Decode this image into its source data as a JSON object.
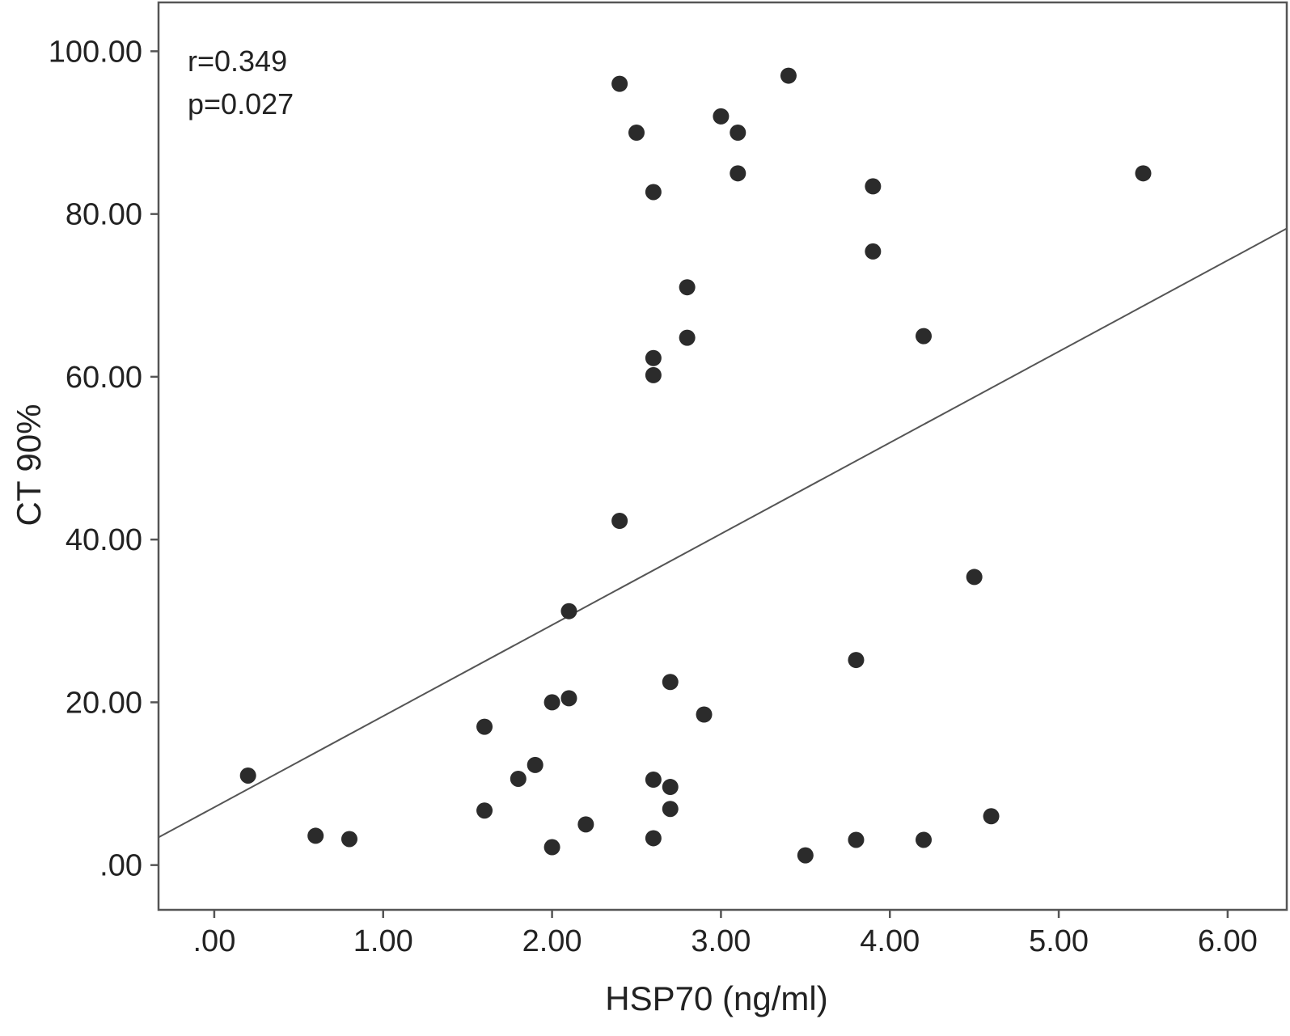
{
  "chart_data": {
    "type": "scatter",
    "title": "",
    "xlabel": "HSP70 (ng/ml)",
    "ylabel": "CT 90%",
    "xlim": [
      -0.33,
      6.35
    ],
    "ylim": [
      -5.5,
      106
    ],
    "xticks": [
      0,
      1,
      2,
      3,
      4,
      5,
      6
    ],
    "xtick_labels": [
      ".00",
      "1.00",
      "2.00",
      "3.00",
      "4.00",
      "5.00",
      "6.00"
    ],
    "yticks": [
      0,
      20,
      40,
      60,
      80,
      100
    ],
    "ytick_labels": [
      ".00",
      "20.00",
      "40.00",
      "60.00",
      "80.00",
      "100.00"
    ],
    "grid": false,
    "legend": "none",
    "annotations": [
      "r=0.349",
      "p=0.027"
    ],
    "fit_line": {
      "intercept": 7.1,
      "slope": 11.2
    },
    "point_color": "#2b2b2b",
    "line_color": "#555555",
    "points": [
      {
        "x": 0.2,
        "y": 11.0
      },
      {
        "x": 0.6,
        "y": 3.6
      },
      {
        "x": 0.8,
        "y": 3.2
      },
      {
        "x": 1.6,
        "y": 17.0
      },
      {
        "x": 1.6,
        "y": 6.7
      },
      {
        "x": 1.8,
        "y": 10.6
      },
      {
        "x": 1.9,
        "y": 12.3
      },
      {
        "x": 2.0,
        "y": 20.0
      },
      {
        "x": 2.0,
        "y": 2.2
      },
      {
        "x": 2.1,
        "y": 20.5
      },
      {
        "x": 2.1,
        "y": 31.2
      },
      {
        "x": 2.2,
        "y": 5.0
      },
      {
        "x": 2.4,
        "y": 96.0
      },
      {
        "x": 2.4,
        "y": 42.3
      },
      {
        "x": 2.5,
        "y": 90.0
      },
      {
        "x": 2.6,
        "y": 82.7
      },
      {
        "x": 2.6,
        "y": 62.3
      },
      {
        "x": 2.6,
        "y": 60.2
      },
      {
        "x": 2.6,
        "y": 10.5
      },
      {
        "x": 2.6,
        "y": 3.3
      },
      {
        "x": 2.7,
        "y": 22.5
      },
      {
        "x": 2.7,
        "y": 9.6
      },
      {
        "x": 2.7,
        "y": 6.9
      },
      {
        "x": 2.8,
        "y": 71.0
      },
      {
        "x": 2.8,
        "y": 64.8
      },
      {
        "x": 2.9,
        "y": 18.5
      },
      {
        "x": 3.0,
        "y": 92.0
      },
      {
        "x": 3.1,
        "y": 90.0
      },
      {
        "x": 3.1,
        "y": 85.0
      },
      {
        "x": 3.4,
        "y": 97.0
      },
      {
        "x": 3.5,
        "y": 1.2
      },
      {
        "x": 3.8,
        "y": 25.2
      },
      {
        "x": 3.8,
        "y": 3.1
      },
      {
        "x": 3.9,
        "y": 83.4
      },
      {
        "x": 3.9,
        "y": 75.4
      },
      {
        "x": 4.2,
        "y": 65.0
      },
      {
        "x": 4.2,
        "y": 3.1
      },
      {
        "x": 4.5,
        "y": 35.4
      },
      {
        "x": 4.6,
        "y": 6.0
      },
      {
        "x": 5.5,
        "y": 85.0
      }
    ]
  }
}
